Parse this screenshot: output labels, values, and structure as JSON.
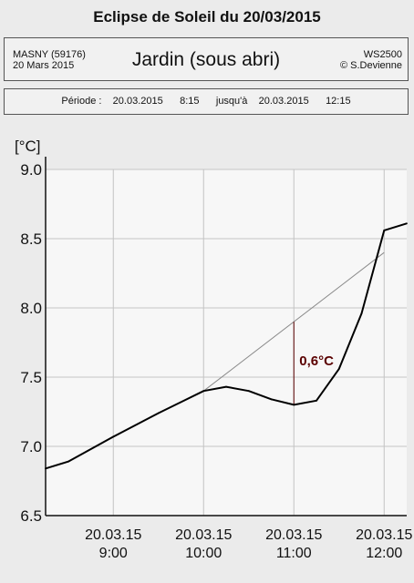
{
  "title": "Eclipse de Soleil du 20/03/2015",
  "header": {
    "location": "MASNY (59176)",
    "date": "20 Mars  2015",
    "subtitle": "Jardin (sous abri)",
    "station": "WS2500",
    "copyright": "© S.Devienne"
  },
  "period": {
    "label": "Période :",
    "start_date": "20.03.2015",
    "start_time": "8:15",
    "until": "jusqu'à",
    "end_date": "20.03.2015",
    "end_time": "12:15"
  },
  "chart_data": {
    "type": "line",
    "ylabel": "[°C]",
    "ylim": [
      6.5,
      9.0
    ],
    "yticks": [
      "9.0",
      "8.5",
      "8.0",
      "7.5",
      "7.0",
      "6.5"
    ],
    "xlim": [
      "08:15",
      "12:15"
    ],
    "xticks": [
      {
        "date": "20.03.15",
        "time": "9:00"
      },
      {
        "date": "20.03.15",
        "time": "10:00"
      },
      {
        "date": "20.03.15",
        "time": "11:00"
      },
      {
        "date": "20.03.15",
        "time": "12:00"
      }
    ],
    "grid": true,
    "series": [
      {
        "color": "#000000",
        "x": [
          "08:15",
          "08:30",
          "09:00",
          "09:30",
          "09:45",
          "10:00",
          "10:15",
          "10:30",
          "10:45",
          "11:00",
          "11:15",
          "11:30",
          "11:45",
          "12:00",
          "12:15"
        ],
        "y": [
          6.84,
          6.89,
          7.07,
          7.24,
          7.32,
          7.4,
          7.43,
          7.4,
          7.34,
          7.3,
          7.33,
          7.56,
          7.96,
          8.56,
          8.61
        ]
      }
    ],
    "reference_line": {
      "color": "#8a8a8a",
      "x": [
        "10:00",
        "12:00"
      ],
      "y": [
        7.4,
        8.4
      ]
    },
    "annotation": {
      "text": "0,6°C",
      "x": "11:00",
      "y_low": 7.3,
      "y_high": 7.9,
      "color": "#5a0000"
    }
  }
}
